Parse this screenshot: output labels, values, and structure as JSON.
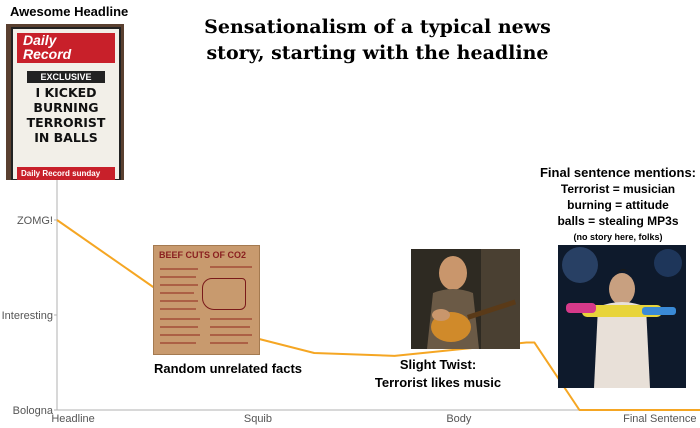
{
  "title": "Sensationalism of a typical news story, starting with the headline",
  "chart_data": {
    "type": "line",
    "title": "Sensationalism of a typical news story, starting with the headline",
    "categories": [
      "Headline",
      "Squib",
      "Body",
      "Final Sentence"
    ],
    "y_levels": [
      "Bologna",
      "Interesting",
      "ZOMG!"
    ],
    "ylim": [
      0,
      2
    ],
    "grid": false,
    "series": [
      {
        "x": [
          0,
          0.95,
          1.6,
          2.1,
          2.92,
          2.97,
          3.25,
          4.0
        ],
        "y": [
          2.0,
          0.88,
          0.6,
          0.57,
          0.71,
          0.71,
          0.0,
          0.0
        ]
      }
    ]
  },
  "annotations": {
    "headline_label": "Awesome Headline",
    "random_facts": "Random unrelated facts",
    "twist": [
      "Slight Twist:",
      "Terrorist likes music"
    ],
    "final_heading": "Final sentence mentions:",
    "final_lines": [
      "Terrorist = musician",
      "burning = attitude",
      "balls = stealing MP3s"
    ],
    "final_note": "(no story here, folks)"
  },
  "poster": {
    "masthead": [
      "Daily",
      "Record"
    ],
    "banner": "EXCLUSIVE",
    "headline_lines": [
      "I KICKED",
      "BURNING",
      "TERRORIST",
      "IN BALLS"
    ],
    "footer": "Daily Record sunday mail"
  },
  "card": {
    "title": "BEEF CUTS OF CO2"
  },
  "colors": {
    "line": "#F5A623",
    "axis": "#B0B0B0",
    "tick_label": "#555555"
  }
}
